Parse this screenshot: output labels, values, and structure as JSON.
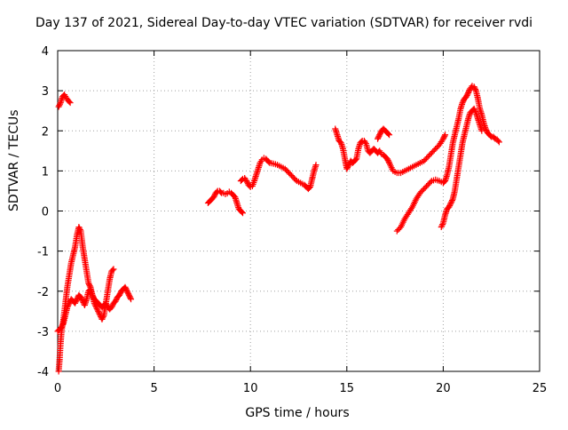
{
  "chart_data": {
    "type": "scatter",
    "title": "Day 137 of 2021, Sidereal Day-to-day VTEC variation (SDTVAR) for receiver rvdi",
    "xlabel": "GPS time / hours",
    "ylabel": "SDTVAR / TECUs",
    "xlim": [
      0,
      25
    ],
    "ylim": [
      -4,
      4
    ],
    "x_ticks": [
      "0",
      "5",
      "10",
      "15",
      "20",
      "25"
    ],
    "y_ticks": [
      "-4",
      "-3",
      "-2",
      "-1",
      "0",
      "1",
      "2",
      "3",
      "4"
    ],
    "grid": true,
    "marker": "plus",
    "color": "#ff0000",
    "series": [
      {
        "points": [
          [
            0.05,
            2.6
          ],
          [
            0.15,
            2.7
          ],
          [
            0.25,
            2.85
          ],
          [
            0.35,
            2.9
          ],
          [
            0.45,
            2.82
          ],
          [
            0.55,
            2.75
          ],
          [
            0.65,
            2.7
          ]
        ]
      },
      {
        "points": [
          [
            0.05,
            -4.0
          ],
          [
            0.1,
            -3.7
          ],
          [
            0.15,
            -3.3
          ],
          [
            0.2,
            -3.0
          ],
          [
            0.3,
            -2.7
          ],
          [
            0.4,
            -2.3
          ],
          [
            0.5,
            -1.9
          ],
          [
            0.6,
            -1.6
          ],
          [
            0.7,
            -1.3
          ],
          [
            0.8,
            -1.1
          ],
          [
            0.9,
            -0.9
          ],
          [
            1.0,
            -0.6
          ],
          [
            1.1,
            -0.4
          ],
          [
            1.2,
            -0.5
          ],
          [
            1.3,
            -0.9
          ],
          [
            1.4,
            -1.2
          ],
          [
            1.5,
            -1.5
          ],
          [
            1.6,
            -1.8
          ],
          [
            1.7,
            -1.9
          ],
          [
            1.8,
            -2.1
          ],
          [
            1.9,
            -2.3
          ],
          [
            2.0,
            -2.4
          ],
          [
            2.1,
            -2.5
          ],
          [
            2.2,
            -2.6
          ],
          [
            2.3,
            -2.7
          ],
          [
            2.4,
            -2.6
          ],
          [
            2.5,
            -2.3
          ],
          [
            2.6,
            -2.0
          ],
          [
            2.7,
            -1.7
          ],
          [
            2.8,
            -1.5
          ],
          [
            2.9,
            -1.45
          ]
        ]
      },
      {
        "points": [
          [
            0.0,
            -3.0
          ],
          [
            0.1,
            -2.95
          ],
          [
            0.2,
            -2.9
          ],
          [
            0.3,
            -2.8
          ],
          [
            0.4,
            -2.6
          ],
          [
            0.5,
            -2.4
          ],
          [
            0.6,
            -2.3
          ],
          [
            0.7,
            -2.2
          ],
          [
            0.8,
            -2.25
          ],
          [
            0.9,
            -2.3
          ],
          [
            1.0,
            -2.2
          ],
          [
            1.1,
            -2.1
          ],
          [
            1.2,
            -2.15
          ],
          [
            1.3,
            -2.25
          ],
          [
            1.4,
            -2.35
          ],
          [
            1.5,
            -2.2
          ],
          [
            1.6,
            -2.0
          ],
          [
            1.7,
            -1.95
          ],
          [
            1.8,
            -2.1
          ],
          [
            1.9,
            -2.2
          ],
          [
            2.0,
            -2.25
          ],
          [
            2.1,
            -2.3
          ],
          [
            2.2,
            -2.35
          ],
          [
            2.3,
            -2.4
          ],
          [
            2.4,
            -2.35
          ],
          [
            2.5,
            -2.3
          ],
          [
            2.6,
            -2.4
          ],
          [
            2.7,
            -2.45
          ],
          [
            2.8,
            -2.4
          ],
          [
            2.9,
            -2.3
          ],
          [
            3.0,
            -2.25
          ],
          [
            3.1,
            -2.15
          ],
          [
            3.2,
            -2.1
          ],
          [
            3.3,
            -2.0
          ],
          [
            3.4,
            -1.95
          ],
          [
            3.5,
            -1.9
          ],
          [
            3.6,
            -2.0
          ],
          [
            3.7,
            -2.1
          ],
          [
            3.8,
            -2.2
          ]
        ]
      },
      {
        "points": [
          [
            7.8,
            0.2
          ],
          [
            7.9,
            0.25
          ],
          [
            8.0,
            0.3
          ],
          [
            8.1,
            0.35
          ],
          [
            8.2,
            0.45
          ],
          [
            8.3,
            0.5
          ],
          [
            8.4,
            0.5
          ],
          [
            8.5,
            0.45
          ],
          [
            8.6,
            0.45
          ],
          [
            8.7,
            0.42
          ],
          [
            8.8,
            0.44
          ],
          [
            8.9,
            0.48
          ],
          [
            9.0,
            0.45
          ],
          [
            9.1,
            0.4
          ],
          [
            9.2,
            0.35
          ],
          [
            9.3,
            0.2
          ],
          [
            9.4,
            0.05
          ],
          [
            9.5,
            0.0
          ],
          [
            9.6,
            -0.05
          ]
        ]
      },
      {
        "points": [
          [
            9.5,
            0.75
          ],
          [
            9.6,
            0.8
          ],
          [
            9.7,
            0.82
          ],
          [
            9.8,
            0.75
          ],
          [
            9.9,
            0.65
          ],
          [
            10.0,
            0.6
          ],
          [
            10.1,
            0.62
          ],
          [
            10.2,
            0.75
          ],
          [
            10.3,
            0.9
          ],
          [
            10.4,
            1.05
          ],
          [
            10.5,
            1.2
          ],
          [
            10.6,
            1.28
          ],
          [
            10.7,
            1.32
          ],
          [
            10.8,
            1.3
          ],
          [
            10.9,
            1.25
          ],
          [
            11.0,
            1.2
          ],
          [
            11.2,
            1.18
          ],
          [
            11.4,
            1.15
          ],
          [
            11.6,
            1.1
          ],
          [
            11.8,
            1.05
          ],
          [
            12.0,
            0.95
          ],
          [
            12.2,
            0.85
          ],
          [
            12.4,
            0.75
          ],
          [
            12.6,
            0.7
          ],
          [
            12.8,
            0.65
          ],
          [
            12.9,
            0.6
          ],
          [
            13.0,
            0.55
          ],
          [
            13.1,
            0.6
          ],
          [
            13.2,
            0.8
          ],
          [
            13.3,
            1.0
          ],
          [
            13.4,
            1.15
          ]
        ]
      },
      {
        "points": [
          [
            14.4,
            2.05
          ],
          [
            14.5,
            1.9
          ],
          [
            14.6,
            1.75
          ],
          [
            14.7,
            1.7
          ],
          [
            14.8,
            1.55
          ],
          [
            14.9,
            1.3
          ],
          [
            15.0,
            1.05
          ],
          [
            15.1,
            1.15
          ],
          [
            15.2,
            1.25
          ],
          [
            15.3,
            1.2
          ],
          [
            15.4,
            1.25
          ],
          [
            15.5,
            1.3
          ],
          [
            15.6,
            1.55
          ],
          [
            15.7,
            1.7
          ],
          [
            15.8,
            1.75
          ],
          [
            15.9,
            1.75
          ],
          [
            16.0,
            1.68
          ],
          [
            16.1,
            1.5
          ],
          [
            16.2,
            1.45
          ],
          [
            16.3,
            1.5
          ],
          [
            16.4,
            1.55
          ],
          [
            16.5,
            1.5
          ],
          [
            16.6,
            1.45
          ],
          [
            16.7,
            1.5
          ],
          [
            16.8,
            1.42
          ],
          [
            16.9,
            1.4
          ],
          [
            17.0,
            1.35
          ],
          [
            17.1,
            1.3
          ],
          [
            17.2,
            1.2
          ],
          [
            17.4,
            1.0
          ],
          [
            17.6,
            0.95
          ],
          [
            17.8,
            0.95
          ],
          [
            18.0,
            1.0
          ],
          [
            18.2,
            1.05
          ],
          [
            18.4,
            1.1
          ],
          [
            18.6,
            1.15
          ],
          [
            18.8,
            1.2
          ],
          [
            19.0,
            1.25
          ],
          [
            19.2,
            1.35
          ],
          [
            19.4,
            1.45
          ],
          [
            19.6,
            1.55
          ],
          [
            19.8,
            1.65
          ],
          [
            20.0,
            1.8
          ],
          [
            20.1,
            1.9
          ]
        ]
      },
      {
        "points": [
          [
            16.6,
            1.8
          ],
          [
            16.7,
            1.9
          ],
          [
            16.8,
            2.0
          ],
          [
            16.9,
            2.05
          ],
          [
            17.0,
            2.0
          ],
          [
            17.1,
            1.95
          ],
          [
            17.2,
            1.9
          ]
        ]
      },
      {
        "points": [
          [
            17.6,
            -0.5
          ],
          [
            17.8,
            -0.4
          ],
          [
            18.0,
            -0.2
          ],
          [
            18.2,
            -0.05
          ],
          [
            18.4,
            0.1
          ],
          [
            18.6,
            0.3
          ],
          [
            18.8,
            0.45
          ],
          [
            19.0,
            0.55
          ],
          [
            19.2,
            0.65
          ],
          [
            19.4,
            0.75
          ],
          [
            19.6,
            0.78
          ],
          [
            19.8,
            0.75
          ],
          [
            20.0,
            0.7
          ],
          [
            20.1,
            0.75
          ],
          [
            20.2,
            0.9
          ],
          [
            20.3,
            1.1
          ],
          [
            20.4,
            1.4
          ],
          [
            20.5,
            1.7
          ],
          [
            20.6,
            1.9
          ],
          [
            20.7,
            2.1
          ],
          [
            20.8,
            2.3
          ],
          [
            20.9,
            2.55
          ],
          [
            21.0,
            2.7
          ],
          [
            21.1,
            2.8
          ],
          [
            21.2,
            2.85
          ],
          [
            21.3,
            2.95
          ],
          [
            21.4,
            3.05
          ],
          [
            21.5,
            3.12
          ],
          [
            21.6,
            3.1
          ],
          [
            21.7,
            3.0
          ],
          [
            21.8,
            2.8
          ],
          [
            21.9,
            2.55
          ],
          [
            22.0,
            2.4
          ],
          [
            22.1,
            2.2
          ],
          [
            22.2,
            2.05
          ],
          [
            22.3,
            1.95
          ],
          [
            22.4,
            1.9
          ],
          [
            22.5,
            1.85
          ],
          [
            22.6,
            1.85
          ],
          [
            22.7,
            1.8
          ],
          [
            22.8,
            1.78
          ],
          [
            22.9,
            1.72
          ]
        ]
      },
      {
        "points": [
          [
            19.9,
            -0.4
          ],
          [
            20.0,
            -0.3
          ],
          [
            20.1,
            -0.1
          ],
          [
            20.2,
            0.05
          ],
          [
            20.3,
            0.1
          ],
          [
            20.4,
            0.2
          ],
          [
            20.5,
            0.3
          ],
          [
            20.6,
            0.5
          ],
          [
            20.7,
            0.8
          ],
          [
            20.8,
            1.1
          ],
          [
            20.9,
            1.4
          ],
          [
            21.0,
            1.7
          ],
          [
            21.1,
            1.9
          ],
          [
            21.2,
            2.1
          ],
          [
            21.3,
            2.3
          ],
          [
            21.4,
            2.45
          ],
          [
            21.5,
            2.5
          ],
          [
            21.6,
            2.55
          ],
          [
            21.7,
            2.45
          ],
          [
            21.8,
            2.3
          ],
          [
            21.9,
            2.15
          ],
          [
            22.0,
            2.0
          ]
        ]
      }
    ]
  }
}
